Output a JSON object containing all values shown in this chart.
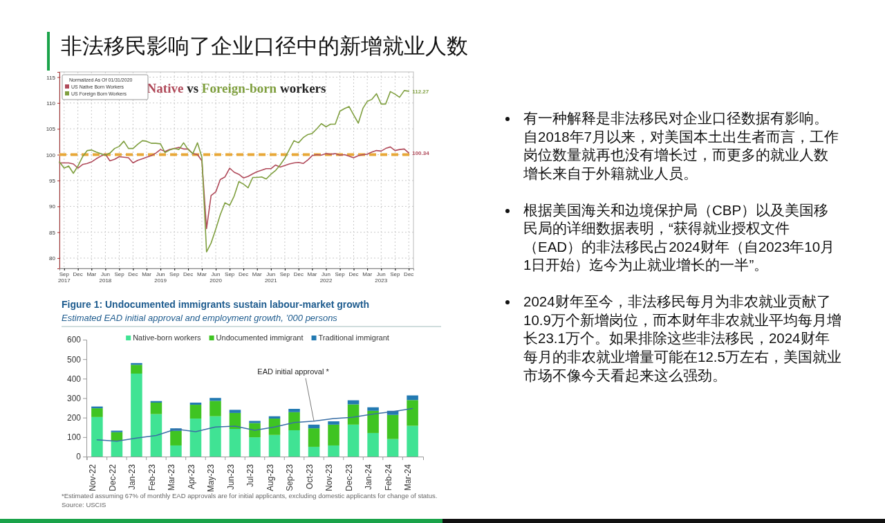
{
  "chart_data": [
    {
      "type": "line",
      "title": "Native vs Foreign-born workers",
      "legend_title": "Normalized As Of 01/31/2020",
      "legend": "top left",
      "grid": true,
      "marker": "none",
      "line_style": "solid",
      "x": [
        "2017-08",
        "2017-09",
        "2017-10",
        "2017-11",
        "2017-12",
        "2018-01",
        "2018-02",
        "2018-03",
        "2018-04",
        "2018-05",
        "2018-06",
        "2018-07",
        "2018-08",
        "2018-09",
        "2018-10",
        "2018-11",
        "2018-12",
        "2019-01",
        "2019-02",
        "2019-03",
        "2019-04",
        "2019-05",
        "2019-06",
        "2019-07",
        "2019-08",
        "2019-09",
        "2019-10",
        "2019-11",
        "2019-12",
        "2020-01",
        "2020-02",
        "2020-03",
        "2020-04",
        "2020-05",
        "2020-06",
        "2020-07",
        "2020-08",
        "2020-09",
        "2020-10",
        "2020-11",
        "2020-12",
        "2021-01",
        "2021-02",
        "2021-03",
        "2021-04",
        "2021-05",
        "2021-06",
        "2021-07",
        "2021-08",
        "2021-09",
        "2021-10",
        "2021-11",
        "2021-12",
        "2022-01",
        "2022-02",
        "2022-03",
        "2022-04",
        "2022-05",
        "2022-06",
        "2022-07",
        "2022-08",
        "2022-09",
        "2022-10",
        "2022-11",
        "2022-12",
        "2023-01",
        "2023-02",
        "2023-03",
        "2023-04",
        "2023-05",
        "2023-06",
        "2023-07",
        "2023-08",
        "2023-09",
        "2023-10",
        "2023-11",
        "2023-12"
      ],
      "series": [
        {
          "name": "US Native Born Workers",
          "color": "#b04a5a",
          "values": [
            98.4,
            98.4,
            98.4,
            98.2,
            97.4,
            98.1,
            98.3,
            98.6,
            99.2,
            99.7,
            100.1,
            98.8,
            99.1,
            99.6,
            99.5,
            99.4,
            98.4,
            98.9,
            99.2,
            99.5,
            99.8,
            100.3,
            101.0,
            100.6,
            101.0,
            101.2,
            101.4,
            101.1,
            101.1,
            100.2,
            100.0,
            98.8,
            85.7,
            92.1,
            92.8,
            95.2,
            95.7,
            97.4,
            96.6,
            96.2,
            95.5,
            95.8,
            96.3,
            96.7,
            97.0,
            97.3,
            97.3,
            98.0,
            97.6,
            97.9,
            98.2,
            98.4,
            98.5,
            98.3,
            99.0,
            99.8,
            100.0,
            99.9,
            100.2,
            100.1,
            100.2,
            99.9,
            100.0,
            99.7,
            99.4,
            99.8,
            100.0,
            100.1,
            100.5,
            100.8,
            100.7,
            101.2,
            101.5,
            100.8,
            101.0,
            101.1,
            100.34
          ]
        },
        {
          "name": "US Foreign Born Workers",
          "color": "#7f9f3f",
          "values": [
            98.6,
            97.4,
            97.8,
            96.4,
            97.8,
            99.6,
            100.8,
            100.9,
            100.5,
            100.2,
            99.9,
            100.3,
            101.2,
            101.6,
            102.6,
            101.2,
            101.2,
            102.0,
            102.7,
            102.6,
            102.2,
            102.2,
            102.1,
            100.4,
            100.9,
            101.2,
            101.0,
            102.3,
            101.0,
            100.2,
            102.3,
            99.5,
            81.2,
            82.9,
            85.6,
            88.4,
            90.7,
            90.2,
            92.0,
            94.8,
            94.3,
            93.6,
            95.6,
            95.6,
            95.7,
            95.3,
            96.2,
            96.9,
            98.0,
            99.3,
            101.0,
            102.7,
            102.3,
            103.3,
            103.9,
            104.1,
            105.0,
            106.0,
            105.4,
            105.9,
            105.9,
            108.4,
            108.9,
            109.3,
            107.7,
            106.1,
            109.0,
            110.3,
            110.7,
            111.8,
            109.8,
            109.8,
            112.2,
            111.7,
            111.1,
            112.4,
            112.27
          ]
        }
      ],
      "xlim": [
        "2017-08",
        "2024-01"
      ],
      "xticks": [
        {
          "value": "2017-09",
          "label": "Sep\n2017"
        },
        {
          "value": "2017-12",
          "label": "Dec"
        },
        {
          "value": "2018-03",
          "label": "Mar"
        },
        {
          "value": "2018-06",
          "label": "Jun\n2018"
        },
        {
          "value": "2018-09",
          "label": "Sep"
        },
        {
          "value": "2018-12",
          "label": "Dec"
        },
        {
          "value": "2019-03",
          "label": "Mar"
        },
        {
          "value": "2019-06",
          "label": "Jun\n2019"
        },
        {
          "value": "2019-09",
          "label": "Sep"
        },
        {
          "value": "2019-12",
          "label": "Dec"
        },
        {
          "value": "2020-03",
          "label": "Mar"
        },
        {
          "value": "2020-06",
          "label": "Jun\n2020"
        },
        {
          "value": "2020-09",
          "label": "Sep"
        },
        {
          "value": "2020-12",
          "label": "Dec"
        },
        {
          "value": "2021-03",
          "label": "Mar"
        },
        {
          "value": "2021-06",
          "label": "Jun\n2021"
        },
        {
          "value": "2021-09",
          "label": "Sep"
        },
        {
          "value": "2021-12",
          "label": "Dec"
        },
        {
          "value": "2022-03",
          "label": "Mar"
        },
        {
          "value": "2022-06",
          "label": "Jun\n2022"
        },
        {
          "value": "2022-09",
          "label": "Sep"
        },
        {
          "value": "2022-12",
          "label": "Dec"
        },
        {
          "value": "2023-03",
          "label": "Mar"
        },
        {
          "value": "2023-06",
          "label": "Jun\n2023"
        },
        {
          "value": "2023-09",
          "label": "Sep"
        },
        {
          "value": "2023-12",
          "label": "Dec"
        }
      ],
      "ylim": [
        78,
        116
      ],
      "yticks": [
        80,
        85,
        90,
        95,
        100,
        105,
        110,
        115
      ],
      "ref_lines": [
        {
          "axis": "y",
          "value": 100,
          "color": "#e8a838",
          "line_style": "dashed"
        }
      ],
      "annotations": [
        {
          "text": "100.34",
          "x": "2023-12",
          "y": 100.34
        },
        {
          "text": "112.27",
          "x": "2023-12",
          "y": 112.27
        }
      ]
    },
    {
      "type": "bar",
      "stacked": true,
      "title": "Figure 1: Undocumented immigrants sustain labour-market growth",
      "subtitle": "Estimated EAD initial approval and employment growth, ’000 persons",
      "legend": "top",
      "grid": false,
      "categories": [
        "Nov-22",
        "Dec-22",
        "Jan-23",
        "Feb-23",
        "Mar-23",
        "Apr-23",
        "May-23",
        "Jun-23",
        "Jul-23",
        "Aug-23",
        "Sep-23",
        "Oct-23",
        "Nov-23",
        "Dec-23",
        "Jan-24",
        "Feb-24",
        "Mar-24"
      ],
      "series": [
        {
          "name": "Native-born workers",
          "color": "#40e394",
          "values": [
            203,
            80,
            426,
            218,
            57,
            195,
            207,
            142,
            99,
            111,
            135,
            50,
            57,
            164,
            121,
            90,
            158
          ]
        },
        {
          "name": "Undocumented immigrant",
          "color": "#3fc422",
          "values": [
            45,
            45,
            45,
            59,
            75,
            71,
            79,
            82,
            73,
            84,
            93,
            95,
            107,
            104,
            114,
            124,
            132
          ]
        },
        {
          "name": "Traditional immigrant",
          "color": "#237ab2",
          "values": [
            9,
            8,
            9,
            8,
            13,
            11,
            15,
            16,
            11,
            12,
            17,
            19,
            17,
            21,
            18,
            21,
            24
          ]
        },
        {
          "name": "EAD initial approval *",
          "type": "line",
          "color": "#3a6fa6",
          "values": [
            86,
            79,
            95,
            108,
            141,
            128,
            152,
            156,
            135,
            152,
            175,
            182,
            195,
            202,
            218,
            231,
            247
          ]
        }
      ],
      "ylim": [
        0,
        600
      ],
      "yticks": [
        0,
        100,
        200,
        300,
        400,
        500,
        600
      ],
      "annotations": [
        "*Estimated assuming 67% of monthly EAD approvals are for initial applicants, excluding domestic applicants for change of status.",
        "Source: USCIS"
      ]
    },
    {
      "type": "other",
      "title": "非法移民影响了企业口径中的新增就业人数",
      "annotations": [
        "有一种解释是非法移民对企业口径数据有影响。自2018年7月以来，对美国本土出生者而言，工作岗位数量就再也没有增长过，而更多的就业人数增长来自于外籍就业人员。",
        "根据美国海关和边境保护局（CBP）以及美国移民局的详细数据表明，“获得就业授权文件（EAD）的非法移民占2024财年（自2023年10月1日开始）迄今为止就业增长的一半”。",
        "2024财年至今，非法移民每月为非农就业贡献了10.9万个新增岗位，而本财年非农就业平均每月增长23.1万个。如果排除这些非法移民，2024财年每月的非农就业增量可能在12.5万左右，美国就业市场不像今天看起来这么强劲。"
      ]
    }
  ]
}
